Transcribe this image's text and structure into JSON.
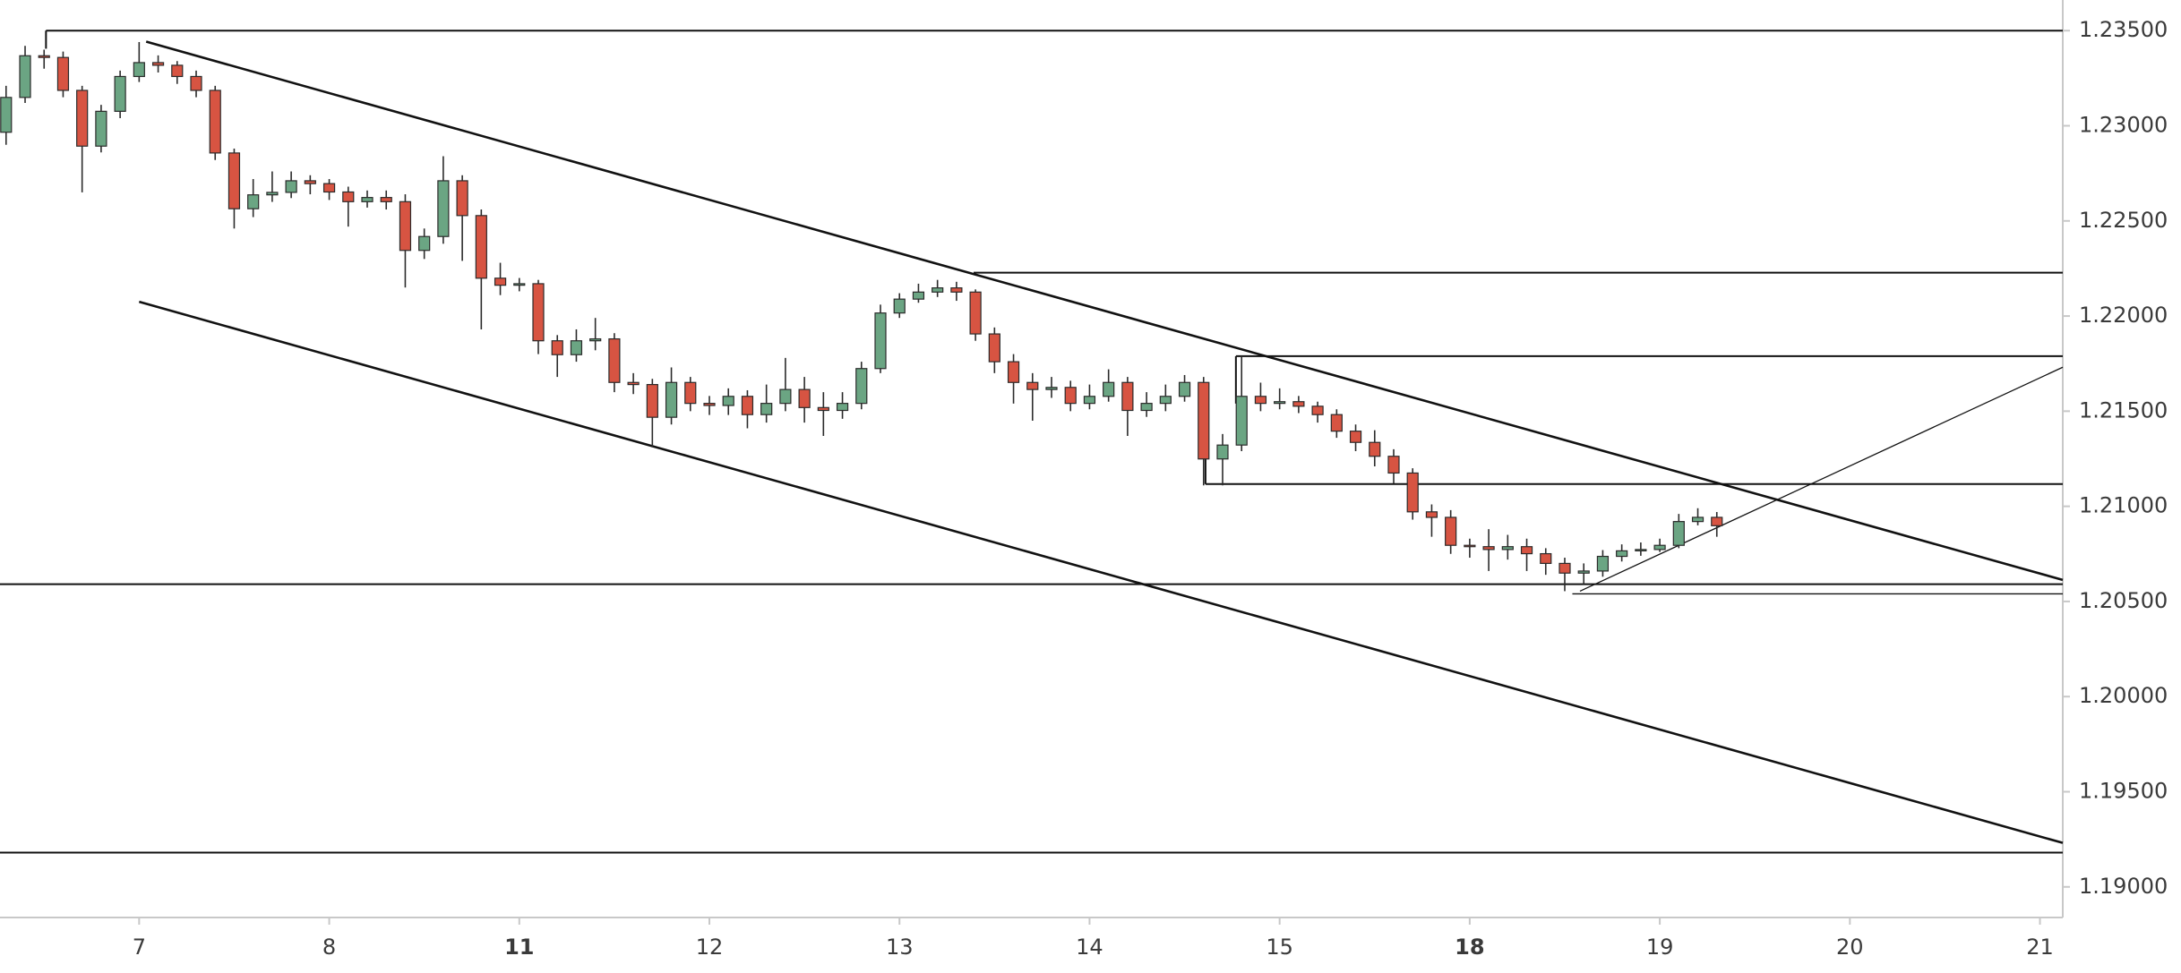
{
  "chart_data": {
    "type": "candlestick",
    "up_color": "#6ba583",
    "down_color": "#d75442",
    "outline_color": "#2b2b2b",
    "grid": false,
    "xlim": [
      -0.732,
      10.12
    ],
    "ylim": [
      1.18839,
      1.23661
    ],
    "xticks": [
      {
        "value": 0,
        "label": "7"
      },
      {
        "value": 1,
        "label": "8"
      },
      {
        "value": 2,
        "label": "11",
        "bold": true
      },
      {
        "value": 3,
        "label": "12"
      },
      {
        "value": 4,
        "label": "13"
      },
      {
        "value": 5,
        "label": "14"
      },
      {
        "value": 6,
        "label": "15"
      },
      {
        "value": 7,
        "label": "18",
        "bold": true
      },
      {
        "value": 8,
        "label": "19"
      },
      {
        "value": 9,
        "label": "20"
      },
      {
        "value": 10,
        "label": "21"
      }
    ],
    "yticks": [
      {
        "value": 1.19,
        "label": "1.19000"
      },
      {
        "value": 1.195,
        "label": "1.19500"
      },
      {
        "value": 1.2,
        "label": "1.20000"
      },
      {
        "value": 1.205,
        "label": "1.20500"
      },
      {
        "value": 1.21,
        "label": "1.21000"
      },
      {
        "value": 1.215,
        "label": "1.21500"
      },
      {
        "value": 1.22,
        "label": "1.22000"
      },
      {
        "value": 1.225,
        "label": "1.22500"
      },
      {
        "value": 1.23,
        "label": "1.23000"
      },
      {
        "value": 1.235,
        "label": "1.23500"
      }
    ],
    "x": [
      -0.7,
      -0.6,
      -0.5,
      -0.4,
      -0.3,
      -0.2,
      -0.1,
      0,
      0.1,
      0.2,
      0.3,
      0.4,
      0.5,
      0.6,
      0.7,
      0.8,
      0.9,
      1,
      1.1,
      1.2,
      1.3,
      1.4,
      1.5,
      1.6,
      1.7,
      1.8,
      1.9,
      2,
      2.1,
      2.2,
      2.3,
      2.4,
      2.5,
      2.6,
      2.7,
      2.8,
      2.9,
      3,
      3.1,
      3.2,
      3.3,
      3.4,
      3.5,
      3.6,
      3.7,
      3.8,
      3.9,
      4,
      4.1,
      4.2,
      4.3,
      4.4,
      4.5,
      4.6,
      4.7,
      4.8,
      4.9,
      5,
      5.1,
      5.2,
      5.3,
      5.4,
      5.5,
      5.6,
      5.7,
      5.8,
      5.9,
      6,
      6.1,
      6.2,
      6.3,
      6.4,
      6.5,
      6.6,
      6.7,
      6.8,
      6.9,
      7,
      7.1,
      7.2,
      7.3,
      7.4,
      7.5,
      7.6,
      7.7,
      7.8,
      7.9,
      8,
      8.1,
      8.2,
      8.3
    ],
    "open": [
      1.22966,
      1.23149,
      1.23368,
      1.23359,
      1.23186,
      1.22893,
      1.23076,
      1.23259,
      1.23332,
      1.23318,
      1.23259,
      1.23186,
      1.22857,
      1.22564,
      1.22637,
      1.2265,
      1.22711,
      1.22696,
      1.22652,
      1.22601,
      1.22623,
      1.22601,
      1.22345,
      1.22418,
      1.22711,
      1.22528,
      1.22199,
      1.22162,
      1.2217,
      1.2187,
      1.21797,
      1.2187,
      1.2188,
      1.21651,
      1.2164,
      1.21468,
      1.21651,
      1.21541,
      1.2153,
      1.21578,
      1.21482,
      1.21541,
      1.21614,
      1.21519,
      1.21504,
      1.21541,
      1.21724,
      1.22016,
      1.22089,
      1.22126,
      1.22148,
      1.22126,
      1.21906,
      1.2176,
      1.21651,
      1.21614,
      1.21625,
      1.21541,
      1.21578,
      1.21651,
      1.21504,
      1.21541,
      1.21578,
      1.21651,
      1.21249,
      1.21322,
      1.21578,
      1.21541,
      1.2155,
      1.21526,
      1.21482,
      1.21395,
      1.21336,
      1.21263,
      1.21175,
      1.20971,
      1.20942,
      1.20795,
      1.20788,
      1.20773,
      1.20788,
      1.20751,
      1.207,
      1.20649,
      1.2066,
      1.20737,
      1.20766,
      1.20773,
      1.20795,
      1.2092,
      1.20942
    ],
    "high": [
      1.2321,
      1.2342,
      1.234,
      1.2339,
      1.2321,
      1.2311,
      1.2329,
      1.2344,
      1.2337,
      1.2334,
      1.2329,
      1.2321,
      1.2288,
      1.2272,
      1.2276,
      1.2276,
      1.2274,
      1.2272,
      1.2268,
      1.2266,
      1.2266,
      1.2264,
      1.2246,
      1.2284,
      1.2274,
      1.2256,
      1.2228,
      1.222,
      1.2219,
      1.219,
      1.2193,
      1.2199,
      1.2191,
      1.217,
      1.2167,
      1.2173,
      1.2168,
      1.2158,
      1.2162,
      1.2161,
      1.2164,
      1.2178,
      1.2168,
      1.216,
      1.216,
      1.2176,
      1.2206,
      1.2212,
      1.2217,
      1.2219,
      1.2218,
      1.2214,
      1.2194,
      1.218,
      1.217,
      1.2168,
      1.2166,
      1.2164,
      1.2172,
      1.2168,
      1.216,
      1.2164,
      1.2169,
      1.2168,
      1.2138,
      1.2179,
      1.2165,
      1.2162,
      1.2158,
      1.2155,
      1.2151,
      1.2143,
      1.214,
      1.213,
      1.212,
      1.2101,
      1.2098,
      1.2083,
      1.2088,
      1.2085,
      1.2083,
      1.2078,
      1.2073,
      1.207,
      1.2077,
      1.208,
      1.2081,
      1.2083,
      1.2096,
      1.2099,
      1.2097
    ],
    "low": [
      1.229,
      1.2312,
      1.233,
      1.2315,
      1.2265,
      1.2286,
      1.2304,
      1.2323,
      1.2328,
      1.2322,
      1.2315,
      1.2282,
      1.2246,
      1.2252,
      1.226,
      1.2262,
      1.2264,
      1.2261,
      1.2247,
      1.2257,
      1.2256,
      1.2215,
      1.223,
      1.2238,
      1.2229,
      1.2193,
      1.2211,
      1.2213,
      1.218,
      1.2168,
      1.2176,
      1.2182,
      1.216,
      1.2159,
      1.2131,
      1.2143,
      1.215,
      1.2148,
      1.2148,
      1.2141,
      1.2144,
      1.215,
      1.2144,
      1.2137,
      1.2146,
      1.2151,
      1.217,
      1.2199,
      1.2207,
      1.221,
      1.2208,
      1.2187,
      1.217,
      1.2154,
      1.2145,
      1.2157,
      1.215,
      1.2151,
      1.2155,
      1.2137,
      1.2147,
      1.215,
      1.2155,
      1.2111,
      1.2111,
      1.2129,
      1.215,
      1.2151,
      1.2149,
      1.2144,
      1.2136,
      1.2129,
      1.2121,
      1.2112,
      1.2093,
      1.2084,
      1.2075,
      1.2073,
      1.2066,
      1.2072,
      1.2066,
      1.2064,
      1.20554,
      1.2059,
      1.2063,
      1.2071,
      1.2074,
      1.2076,
      1.2078,
      1.209,
      1.2084
    ],
    "close": [
      1.23149,
      1.23368,
      1.23359,
      1.23186,
      1.22893,
      1.23076,
      1.23259,
      1.23332,
      1.23318,
      1.23259,
      1.23186,
      1.22857,
      1.22564,
      1.22637,
      1.2265,
      1.22711,
      1.22696,
      1.22652,
      1.22601,
      1.22623,
      1.22601,
      1.22345,
      1.22418,
      1.22711,
      1.22528,
      1.22199,
      1.22162,
      1.2217,
      1.2187,
      1.21797,
      1.2187,
      1.2188,
      1.21651,
      1.2164,
      1.21468,
      1.21651,
      1.21541,
      1.2153,
      1.21578,
      1.21482,
      1.21541,
      1.21614,
      1.21519,
      1.21504,
      1.21541,
      1.21724,
      1.22016,
      1.22089,
      1.22126,
      1.22148,
      1.22126,
      1.21906,
      1.2176,
      1.21651,
      1.21614,
      1.21625,
      1.21541,
      1.21578,
      1.21651,
      1.21504,
      1.21541,
      1.21578,
      1.21651,
      1.21249,
      1.21322,
      1.21578,
      1.21541,
      1.2155,
      1.21526,
      1.21482,
      1.21395,
      1.21336,
      1.21263,
      1.21175,
      1.20971,
      1.20942,
      1.20795,
      1.20788,
      1.20773,
      1.20788,
      1.20751,
      1.207,
      1.20649,
      1.2066,
      1.20737,
      1.20766,
      1.20773,
      1.20795,
      1.2092,
      1.20942,
      1.20898
    ],
    "lines": [
      {
        "x1": -0.49,
        "y1": 1.235,
        "x2": 10.12,
        "y2": 1.235,
        "weight": "normal"
      },
      {
        "x1": -0.49,
        "y1": 1.235,
        "x2": -0.49,
        "y2": 1.23405,
        "weight": "normal"
      },
      {
        "x1": 0.037,
        "y1": 1.23442,
        "x2": 10.12,
        "y2": 1.20613,
        "weight": "bold"
      },
      {
        "x1": 0,
        "y1": 1.22075,
        "x2": 10.12,
        "y2": 1.19231,
        "weight": "bold"
      },
      {
        "x1": 4.39,
        "y1": 1.22228,
        "x2": 10.12,
        "y2": 1.22228,
        "weight": "normal"
      },
      {
        "x1": 5.77,
        "y1": 1.21789,
        "x2": 10.12,
        "y2": 1.21789,
        "weight": "normal"
      },
      {
        "x1": 5.77,
        "y1": 1.21789,
        "x2": 5.77,
        "y2": 1.2154,
        "weight": "normal"
      },
      {
        "x1": 5.61,
        "y1": 1.21117,
        "x2": 10.12,
        "y2": 1.21117,
        "weight": "normal"
      },
      {
        "x1": 5.61,
        "y1": 1.21117,
        "x2": 5.61,
        "y2": 1.213,
        "weight": "normal"
      },
      {
        "x1": -0.732,
        "y1": 1.20591,
        "x2": 10.12,
        "y2": 1.20591,
        "weight": "normal"
      },
      {
        "x1": 7.54,
        "y1": 1.2054,
        "x2": 10.12,
        "y2": 1.2054,
        "weight": "thin"
      },
      {
        "x1": 7.58,
        "y1": 1.20554,
        "x2": 10.12,
        "y2": 1.21731,
        "weight": "thin"
      },
      {
        "x1": -0.732,
        "y1": 1.1918,
        "x2": 10.12,
        "y2": 1.1918,
        "weight": "normal"
      }
    ]
  }
}
